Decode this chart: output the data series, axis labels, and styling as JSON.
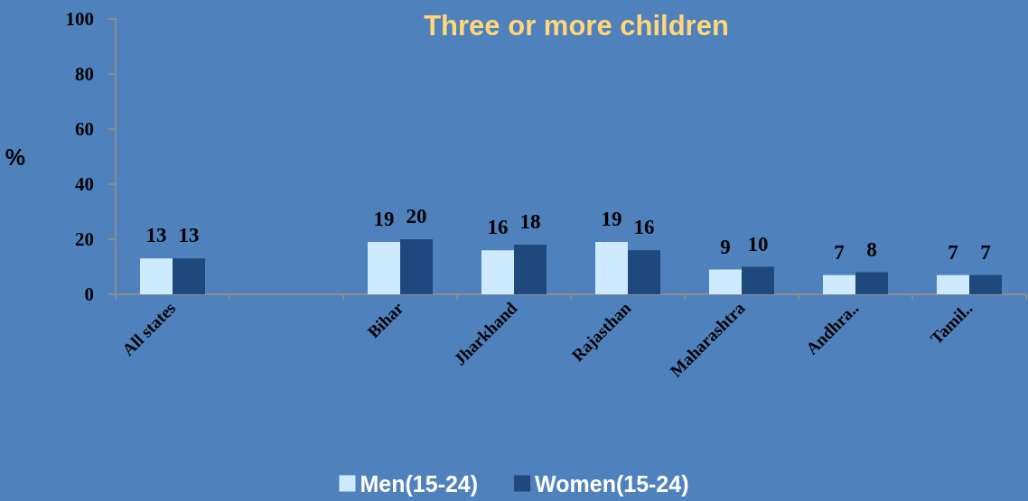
{
  "chart_data": {
    "type": "bar",
    "title": "Three or more children",
    "ylabel": "%",
    "categories": [
      "All states",
      null,
      "Bihar",
      "Jharkhand",
      "Rajasthan",
      "Maharashtra",
      "Andhra..",
      "Tamil.."
    ],
    "series": [
      {
        "name": "Men(15-24)",
        "color": "#cdeafe",
        "values": [
          13,
          null,
          19,
          16,
          19,
          9,
          7,
          7
        ]
      },
      {
        "name": "Women(15-24)",
        "color": "#1f497d",
        "values": [
          13,
          null,
          20,
          18,
          16,
          10,
          8,
          7
        ]
      }
    ],
    "ylim": [
      0,
      100
    ],
    "yticks": [
      0,
      20,
      40,
      60,
      80,
      100
    ],
    "data_labels": true,
    "legend": "bottom"
  }
}
